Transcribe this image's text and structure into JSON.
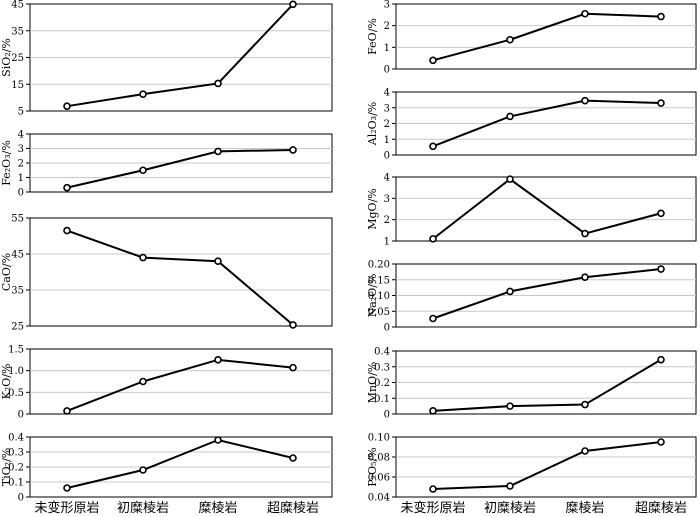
{
  "categories": [
    "未变形原岩",
    "初糜棱岩",
    "糜棱岩",
    "超糜棱岩"
  ],
  "chart_data": [
    {
      "type": "line",
      "ylabel": "SiO₂/%",
      "yticks": [
        "5",
        "15",
        "25",
        "35",
        "45"
      ],
      "ylim": [
        5,
        45
      ],
      "values": [
        6.8,
        11.3,
        15.3,
        44.9
      ]
    },
    {
      "type": "line",
      "ylabel": "Fe₂O₃/%",
      "yticks": [
        "0",
        "1",
        "2",
        "3",
        "4"
      ],
      "ylim": [
        0,
        4
      ],
      "values": [
        0.3,
        1.5,
        2.8,
        2.9
      ]
    },
    {
      "type": "line",
      "ylabel": "CaO/%",
      "yticks": [
        "25",
        "35",
        "45",
        "55"
      ],
      "ylim": [
        25,
        55
      ],
      "values": [
        51.5,
        44.0,
        43.0,
        25.3
      ]
    },
    {
      "type": "line",
      "ylabel": "K₂O/%",
      "yticks": [
        "0",
        "0.5",
        "1.0",
        "1.5"
      ],
      "ylim": [
        0,
        1.5
      ],
      "values": [
        0.07,
        0.75,
        1.25,
        1.07
      ]
    },
    {
      "type": "line",
      "ylabel": "TiO₂/%",
      "yticks": [
        "0",
        "0.1",
        "0.2",
        "0.3",
        "0.4"
      ],
      "ylim": [
        0,
        0.4
      ],
      "values": [
        0.06,
        0.18,
        0.38,
        0.26
      ]
    },
    {
      "type": "line",
      "ylabel": "FeO/%",
      "yticks": [
        "0",
        "1",
        "2",
        "3"
      ],
      "ylim": [
        0,
        3
      ],
      "values": [
        0.4,
        1.35,
        2.55,
        2.42
      ]
    },
    {
      "type": "line",
      "ylabel": "Al₂O₃/%",
      "yticks": [
        "0",
        "1",
        "2",
        "3",
        "4"
      ],
      "ylim": [
        0,
        4
      ],
      "values": [
        0.55,
        2.45,
        3.45,
        3.3
      ]
    },
    {
      "type": "line",
      "ylabel": "MgO/%",
      "yticks": [
        "1",
        "2",
        "3",
        "4"
      ],
      "ylim": [
        1,
        4
      ],
      "values": [
        1.1,
        3.9,
        1.35,
        2.3
      ]
    },
    {
      "type": "line",
      "ylabel": "Na₂O/%",
      "yticks": [
        "0",
        "0.05",
        "0.10",
        "0.15",
        "0.20"
      ],
      "ylim": [
        0,
        0.2
      ],
      "values": [
        0.027,
        0.113,
        0.158,
        0.184
      ]
    },
    {
      "type": "line",
      "ylabel": "MnO/%",
      "yticks": [
        "0",
        "0.1",
        "0.2",
        "0.3",
        "0.4"
      ],
      "ylim": [
        0,
        0.4
      ],
      "values": [
        0.02,
        0.05,
        0.06,
        0.345
      ]
    },
    {
      "type": "line",
      "ylabel": "P₂O₅/%",
      "yticks": [
        "0.04",
        "0.06",
        "0.08",
        "0.10"
      ],
      "ylim": [
        0.04,
        0.1
      ],
      "values": [
        0.048,
        0.051,
        0.086,
        0.095
      ]
    }
  ]
}
